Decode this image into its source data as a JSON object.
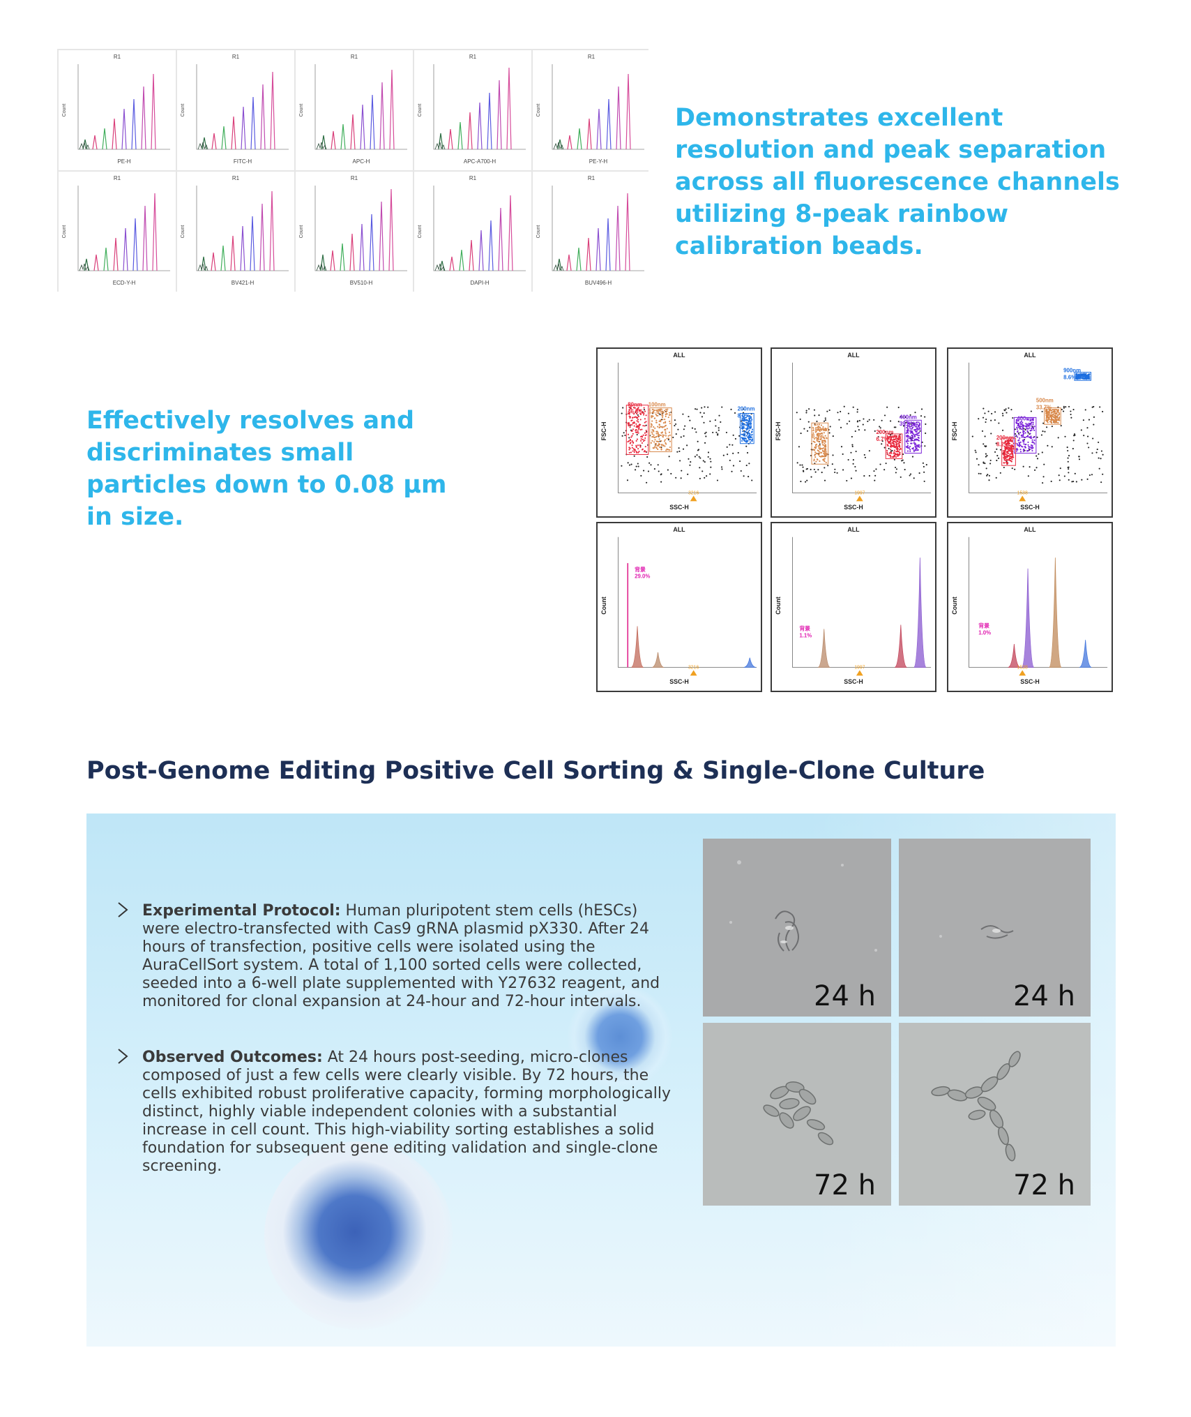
{
  "histograms": {
    "region_label": "R1",
    "y_axis_label": "Count",
    "channels": [
      "PE-H",
      "FITC-H",
      "APC-H",
      "APC-A700-H",
      "PE-Y-H",
      "ECD-Y-H",
      "BV421-H",
      "BV510-H",
      "DAPI-H",
      "BUV496-H"
    ]
  },
  "text_blocks": {
    "resolution": "Demonstrates excellent resolution and peak separation across all fluorescence channels utilizing 8-peak rainbow calibration beads.",
    "small_particles": "Effectively resolves and discriminates small particles down to 0.08 μm in size."
  },
  "scatter_plots": {
    "panel_title": "ALL",
    "x_axis_label": "SSC-H",
    "y_axis_label": "FSC-H",
    "count_label": "Count",
    "plots": [
      {
        "gates": [
          {
            "name": "80nm",
            "value": "46.8%",
            "color": "#e8283c"
          },
          {
            "name": "100nm",
            "value": "12.9%",
            "color": "#d8884a"
          },
          {
            "name": "200nm",
            "value": "8.0%",
            "color": "#1e6fe0"
          }
        ],
        "marker": "3216"
      },
      {
        "gates": [
          {
            "name": "100nm",
            "value": "8.9%",
            "color": "#d8884a"
          },
          {
            "name": "200nm",
            "value": "6.7%",
            "color": "#e8283c"
          },
          {
            "name": "400nm",
            "value": "39.8%",
            "color": "#7a22d8"
          }
        ],
        "marker": "1997"
      },
      {
        "gates": [
          {
            "name": "900nm",
            "value": "8.6%",
            "color": "#1e6fe0"
          },
          {
            "name": "500nm",
            "value": "33.7%",
            "color": "#d8884a"
          },
          {
            "name": "400nm",
            "value": "45.1%",
            "color": "#7a22d8"
          },
          {
            "name": "200nm",
            "value": "8.2%",
            "color": "#e8283c"
          }
        ],
        "marker": "1538"
      }
    ],
    "histograms": [
      {
        "gate_name": "背景",
        "gate_value": "29.0%",
        "marker": "3216"
      },
      {
        "gate_name": "背景",
        "gate_value": "1.1%",
        "marker": "1997"
      },
      {
        "gate_name": "背景",
        "gate_value": "1.0%",
        "marker": "1538"
      }
    ]
  },
  "section": {
    "title": "Post-Genome Editing Positive Cell Sorting & Single-Clone Culture",
    "bullets": [
      {
        "heading": "Experimental Protocol:",
        "body": " Human pluripotent stem cells (hESCs) were electro-transfected with Cas9 gRNA plasmid pX330. After 24 hours of transfection, positive cells were isolated using the AuraCellSort system. A total of 1,100 sorted cells were collected, seeded into a 6-well plate supplemented with Y27632 reagent, and monitored for clonal expansion at 24-hour and 72-hour intervals."
      },
      {
        "heading": "Observed Outcomes:",
        "body": " At 24 hours post-seeding, micro-clones composed of just a few cells were clearly visible. By 72 hours, the cells exhibited robust proliferative capacity, forming morphologically distinct, highly viable independent colonies with a substantial increase in cell count. This high-viability sorting establishes a solid foundation for subsequent gene editing validation and single-clone screening."
      }
    ],
    "micrographs": [
      "24 h",
      "24 h",
      "72 h",
      "72 h"
    ]
  }
}
